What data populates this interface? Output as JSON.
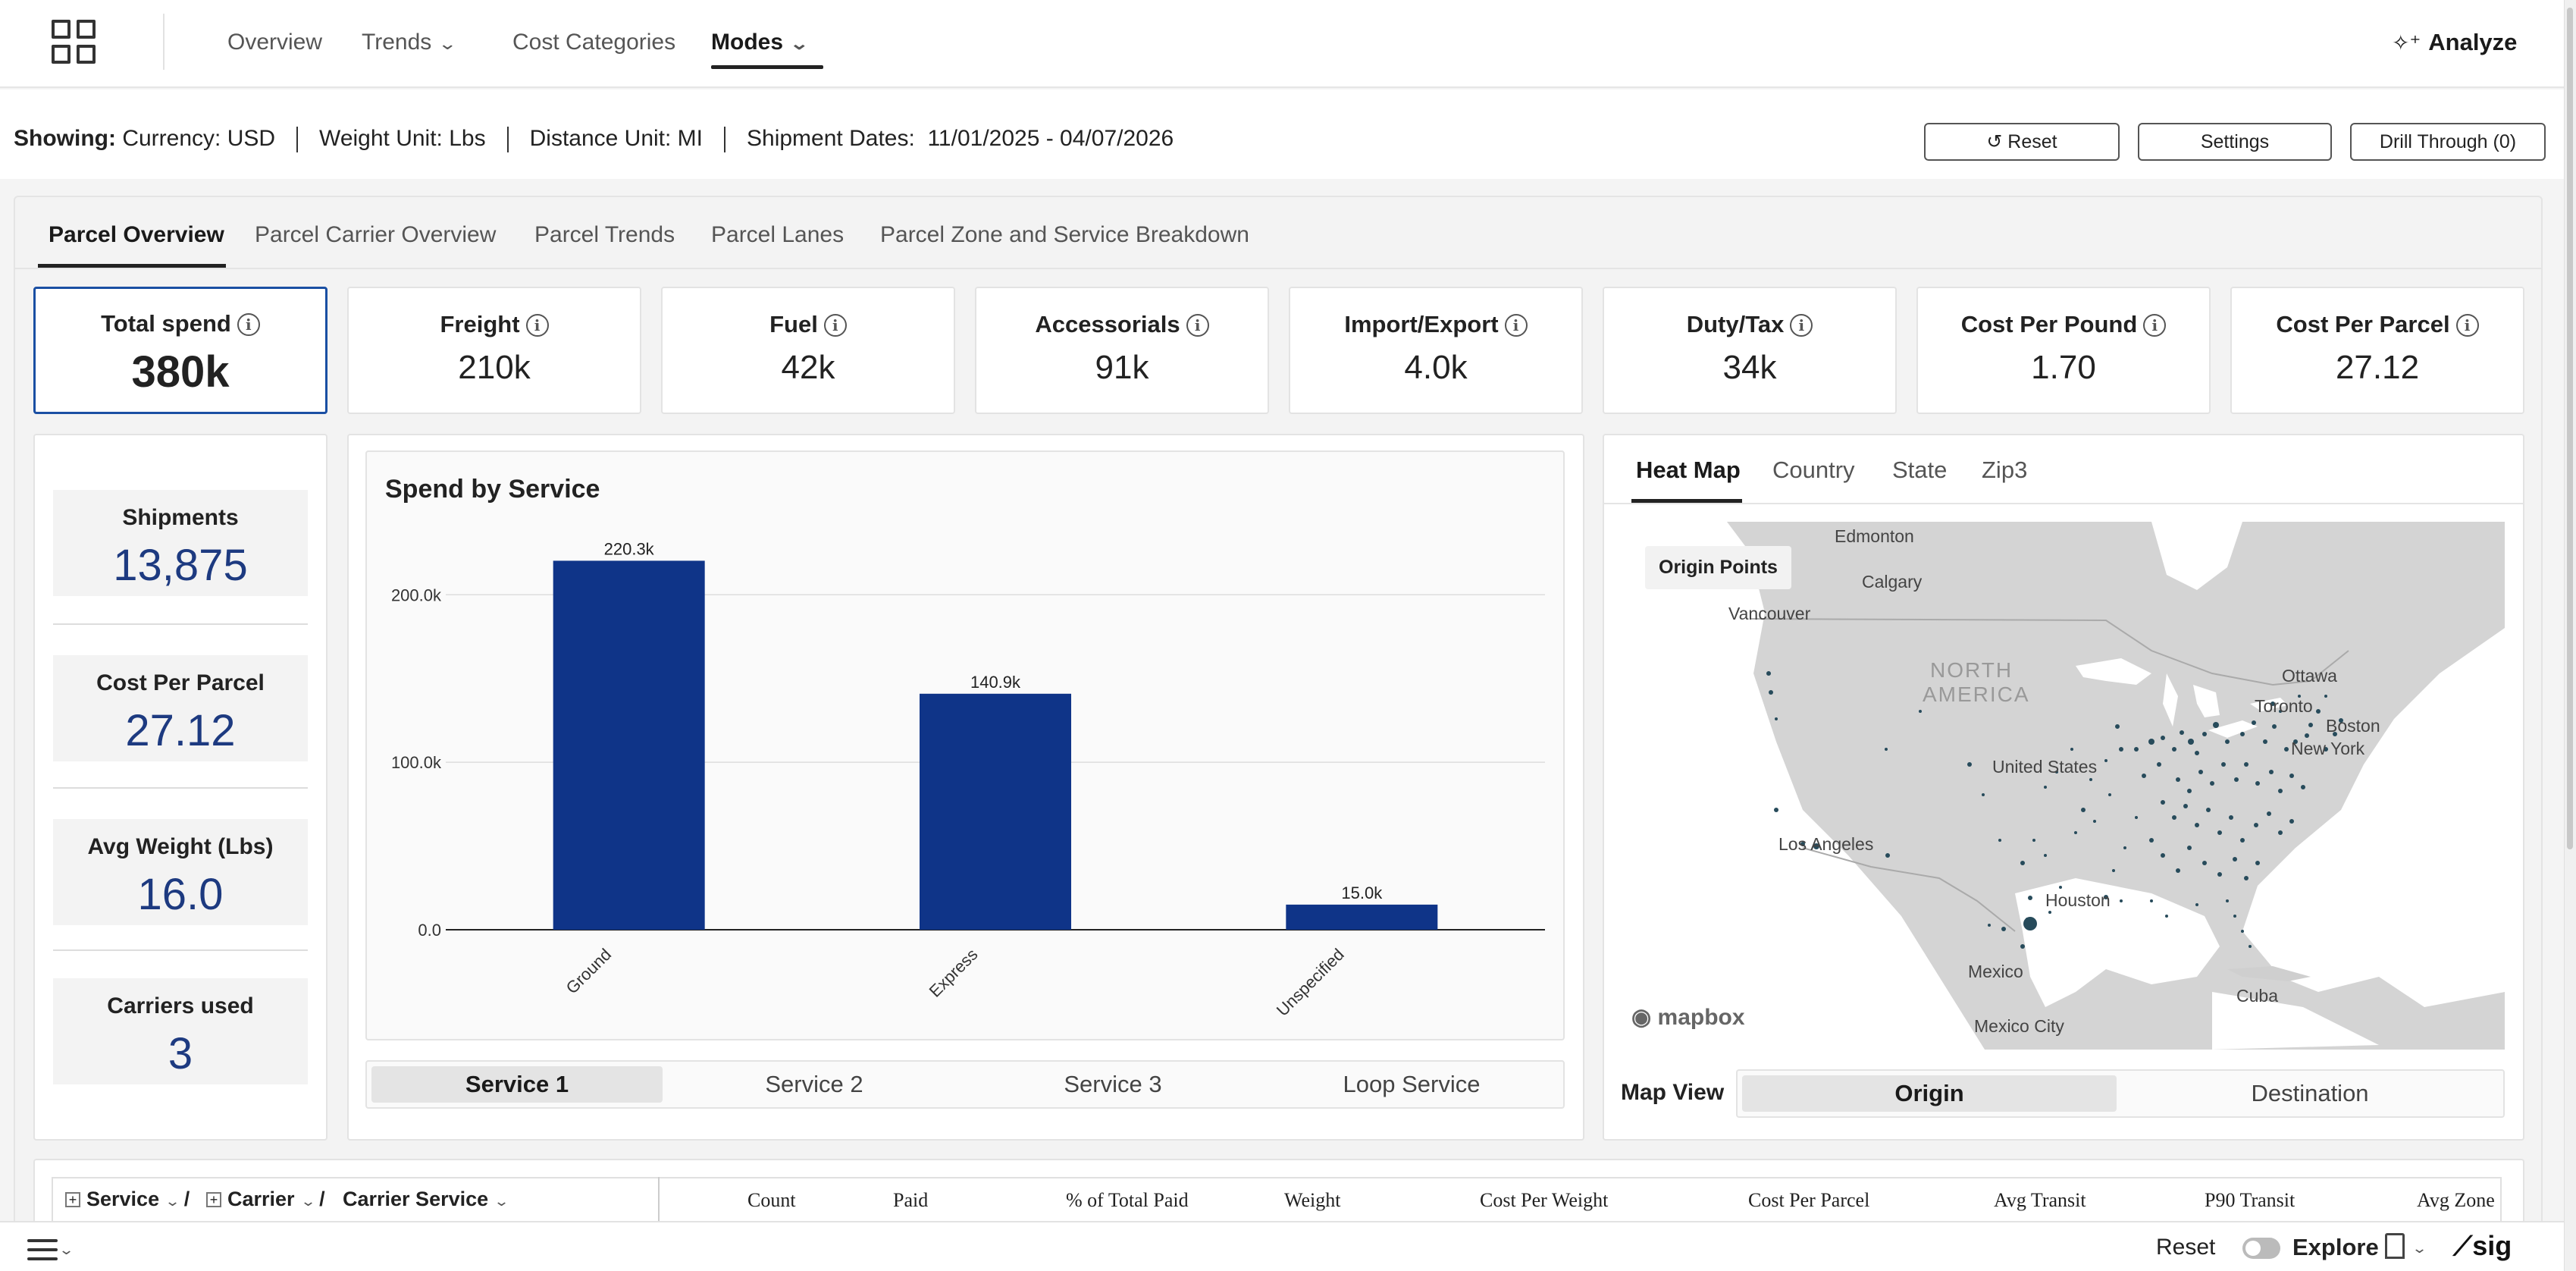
{
  "nav": {
    "items": [
      {
        "label": "Overview"
      },
      {
        "label": "Trends"
      },
      {
        "label": "Cost Categories"
      },
      {
        "label": "Modes"
      }
    ],
    "active": "Modes",
    "analyze_label": "Analyze"
  },
  "filters": {
    "showing_label": "Showing:",
    "currency": "Currency: USD",
    "weight": "Weight Unit: Lbs",
    "distance": "Distance Unit: MI",
    "dates_label": "Shipment Dates:",
    "dates_value": "11/01/2025 - 04/07/2026",
    "reset_label": "↺ Reset",
    "settings_label": "Settings",
    "drill_label": "Drill Through (0)"
  },
  "tabs": [
    {
      "label": "Parcel Overview"
    },
    {
      "label": "Parcel Carrier Overview"
    },
    {
      "label": "Parcel Trends"
    },
    {
      "label": "Parcel Lanes"
    },
    {
      "label": "Parcel Zone and Service Breakdown"
    }
  ],
  "kpis": [
    {
      "label": "Total spend",
      "value": "380k"
    },
    {
      "label": "Freight",
      "value": "210k"
    },
    {
      "label": "Fuel",
      "value": "42k"
    },
    {
      "label": "Accessorials",
      "value": "91k"
    },
    {
      "label": "Import/Export",
      "value": "4.0k"
    },
    {
      "label": "Duty/Tax",
      "value": "34k"
    },
    {
      "label": "Cost Per Pound",
      "value": "1.70"
    },
    {
      "label": "Cost Per Parcel",
      "value": "27.12"
    }
  ],
  "stats": [
    {
      "label": "Shipments",
      "value": "13,875"
    },
    {
      "label": "Cost Per Parcel",
      "value": "27.12"
    },
    {
      "label": "Avg Weight (Lbs)",
      "value": "16.0"
    },
    {
      "label": "Carriers used",
      "value": "3"
    }
  ],
  "chart_data": {
    "type": "bar",
    "title": "Spend by Service",
    "categories": [
      "Ground",
      "Express",
      "Unspecified"
    ],
    "values": [
      220.3,
      140.9,
      15.0
    ],
    "data_labels": [
      "220.3k",
      "140.9k",
      "15.0k"
    ],
    "y_ticks": [
      0,
      100,
      200
    ],
    "y_tick_labels": [
      "0.0",
      "100.0k",
      "200.0k"
    ],
    "ylim": [
      0,
      230
    ],
    "grid": true,
    "color": "#0f3488"
  },
  "service_tabs": [
    "Service 1",
    "Service 2",
    "Service 3",
    "Loop Service"
  ],
  "map": {
    "tabs": [
      "Heat Map",
      "Country",
      "State",
      "Zip3"
    ],
    "badge": "Origin Points",
    "labels": [
      "Edmonton",
      "Calgary",
      "Vancouver",
      "NORTH",
      "AMERICA",
      "Ottawa",
      "Toronto",
      "Boston",
      "New York",
      "United States",
      "Los Angeles",
      "Houston",
      "Mexico",
      "Mexico City",
      "Cuba"
    ],
    "attribution": "mapbox",
    "view_label": "Map View",
    "views": [
      "Origin",
      "Destination"
    ]
  },
  "table": {
    "groups": [
      "Service",
      "Carrier",
      "Carrier Service"
    ],
    "columns": [
      "Count",
      "Paid",
      "% of Total Paid",
      "Weight",
      "Cost Per Weight",
      "Cost Per Parcel",
      "Avg Transit",
      "P90 Transit",
      "Avg Zone"
    ]
  },
  "bottombar": {
    "reset_label": "Reset",
    "explore_label": "Explore",
    "logo_text": "sig"
  }
}
